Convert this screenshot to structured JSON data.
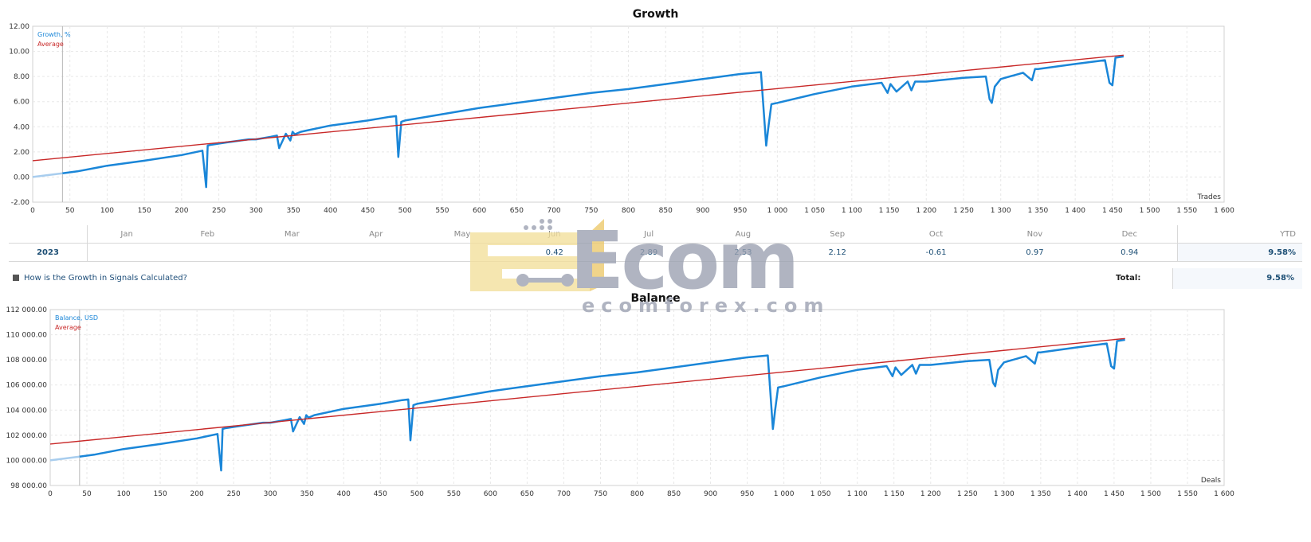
{
  "chart_data": [
    {
      "type": "line",
      "title": "Growth",
      "legend": [
        "Growth, %",
        "Average"
      ],
      "legend_placement": "top-left",
      "x_axis_label": "Trades",
      "xlim": [
        0,
        1600
      ],
      "ylim": [
        -2,
        12
      ],
      "x_ticks": [
        "0",
        "50",
        "100",
        "150",
        "200",
        "250",
        "300",
        "350",
        "400",
        "450",
        "500",
        "550",
        "600",
        "650",
        "700",
        "750",
        "800",
        "850",
        "900",
        "950",
        "1 000",
        "1 050",
        "1 100",
        "1 150",
        "1 200",
        "1 250",
        "1 300",
        "1 350",
        "1 400",
        "1 450",
        "1 500",
        "1 550",
        "1 600"
      ],
      "y_ticks": [
        "12.00",
        "10.00",
        "8.00",
        "6.00",
        "4.00",
        "2.00",
        "0.00",
        "-2.00"
      ],
      "grid": true,
      "series": [
        {
          "name": "Growth, %",
          "color": "#1a86d8",
          "x": [
            0,
            40,
            60,
            100,
            150,
            200,
            228,
            233,
            235,
            238,
            260,
            290,
            300,
            320,
            328,
            331,
            340,
            346,
            349,
            352,
            360,
            400,
            450,
            480,
            488,
            491,
            495,
            500,
            550,
            600,
            650,
            700,
            750,
            800,
            850,
            900,
            950,
            978,
            985,
            988,
            992,
            1000,
            1050,
            1100,
            1140,
            1148,
            1152,
            1160,
            1175,
            1180,
            1185,
            1200,
            1250,
            1280,
            1285,
            1288,
            1292,
            1300,
            1330,
            1342,
            1346,
            1350,
            1400,
            1440,
            1446,
            1450,
            1454,
            1465
          ],
          "y": [
            0.0,
            0.3,
            0.45,
            0.9,
            1.3,
            1.75,
            2.1,
            -0.8,
            2.5,
            2.55,
            2.75,
            3.0,
            3.0,
            3.2,
            3.3,
            2.3,
            3.45,
            2.9,
            3.6,
            3.4,
            3.6,
            4.1,
            4.5,
            4.8,
            4.85,
            1.6,
            4.4,
            4.5,
            5.0,
            5.5,
            5.9,
            6.3,
            6.7,
            7.0,
            7.4,
            7.8,
            8.2,
            8.35,
            2.5,
            4.0,
            5.8,
            5.9,
            6.6,
            7.2,
            7.5,
            6.7,
            7.4,
            6.8,
            7.6,
            6.9,
            7.6,
            7.6,
            7.9,
            8.0,
            6.2,
            5.9,
            7.2,
            7.8,
            8.3,
            7.7,
            8.6,
            8.6,
            9.0,
            9.3,
            7.5,
            7.3,
            9.5,
            9.6
          ]
        },
        {
          "name": "Average",
          "color": "#c82828",
          "x": [
            0,
            1465
          ],
          "y": [
            1.3,
            9.7
          ]
        }
      ]
    },
    {
      "type": "line",
      "title": "Balance",
      "legend": [
        "Balance, USD",
        "Average"
      ],
      "legend_placement": "top-left",
      "x_axis_label": "Deals",
      "xlim": [
        0,
        1600
      ],
      "ylim": [
        98000,
        112000
      ],
      "x_ticks": [
        "0",
        "50",
        "100",
        "150",
        "200",
        "250",
        "300",
        "350",
        "400",
        "450",
        "500",
        "550",
        "600",
        "650",
        "700",
        "750",
        "800",
        "850",
        "900",
        "950",
        "1 000",
        "1 050",
        "1 100",
        "1 150",
        "1 200",
        "1 250",
        "1 300",
        "1 350",
        "1 400",
        "1 450",
        "1 500",
        "1 550",
        "1 600"
      ],
      "y_ticks": [
        "112 000.00",
        "110 000.00",
        "108 000.00",
        "106 000.00",
        "104 000.00",
        "102 000.00",
        "100 000.00",
        "98 000.00"
      ],
      "grid": true,
      "series": [
        {
          "name": "Balance, USD",
          "color": "#1a86d8",
          "x": [
            0,
            40,
            60,
            100,
            150,
            200,
            228,
            233,
            235,
            238,
            260,
            290,
            300,
            320,
            328,
            331,
            340,
            346,
            349,
            352,
            360,
            400,
            450,
            480,
            488,
            491,
            495,
            500,
            550,
            600,
            650,
            700,
            750,
            800,
            850,
            900,
            950,
            978,
            985,
            988,
            992,
            1000,
            1050,
            1100,
            1140,
            1148,
            1152,
            1160,
            1175,
            1180,
            1185,
            1200,
            1250,
            1280,
            1285,
            1288,
            1292,
            1300,
            1330,
            1342,
            1346,
            1350,
            1400,
            1440,
            1446,
            1450,
            1454,
            1465
          ],
          "y": [
            100000,
            100300,
            100450,
            100900,
            101300,
            101750,
            102100,
            99200,
            102500,
            102550,
            102750,
            103000,
            103000,
            103200,
            103300,
            102300,
            103450,
            102900,
            103600,
            103400,
            103600,
            104100,
            104500,
            104800,
            104850,
            101600,
            104400,
            104500,
            105000,
            105500,
            105900,
            106300,
            106700,
            107000,
            107400,
            107800,
            108200,
            108350,
            102500,
            104000,
            105800,
            105900,
            106600,
            107200,
            107500,
            106700,
            107400,
            106800,
            107600,
            106900,
            107600,
            107600,
            107900,
            108000,
            106200,
            105900,
            107200,
            107800,
            108300,
            107700,
            108600,
            108600,
            109000,
            109300,
            107500,
            107300,
            109500,
            109600
          ]
        },
        {
          "name": "Average",
          "color": "#c82828",
          "x": [
            0,
            1465
          ],
          "y": [
            101300,
            109700
          ]
        }
      ]
    }
  ],
  "monthly_table": {
    "months": [
      "Jan",
      "Feb",
      "Mar",
      "Apr",
      "May",
      "Jun",
      "Jul",
      "Aug",
      "Sep",
      "Oct",
      "Nov",
      "Dec"
    ],
    "ytd_label": "YTD",
    "year": "2023",
    "values": [
      "",
      "",
      "",
      "",
      "",
      "0.42",
      "2.89",
      "2.53",
      "2.12",
      "-0.61",
      "0.97",
      "0.94"
    ],
    "ytd_value": "9.58%"
  },
  "help_link": "How is the Growth in Signals Calculated?",
  "total": {
    "label": "Total:",
    "value": "9.58%"
  },
  "watermark": {
    "brand": "Ecom",
    "site": "ecomforex.com"
  },
  "colors": {
    "growth_line": "#1a86d8",
    "average_line": "#c82828",
    "grid": "#e6e6e6"
  }
}
